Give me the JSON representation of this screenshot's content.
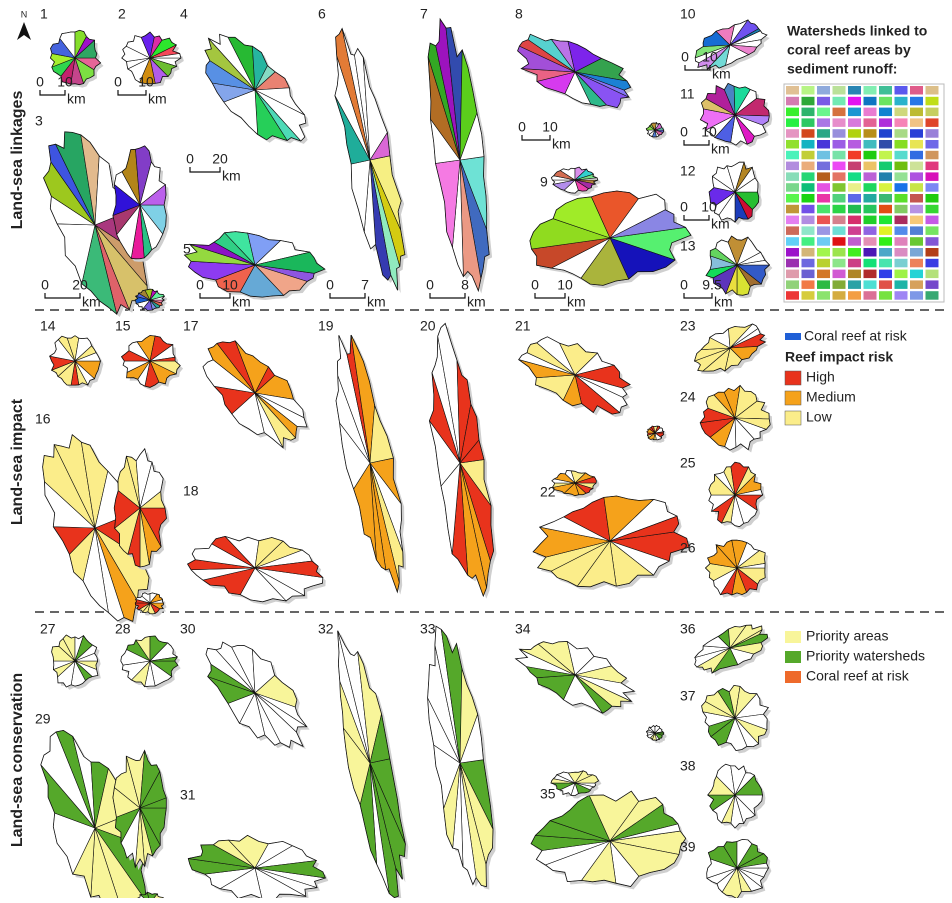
{
  "north": "N",
  "rows": [
    {
      "label": "Land-sea linkages"
    },
    {
      "label": "Land-sea impact"
    },
    {
      "label": "Land-sea conservation"
    }
  ],
  "panels": [
    1,
    2,
    3,
    4,
    5,
    6,
    7,
    8,
    9,
    10,
    11,
    12,
    13,
    14,
    15,
    16,
    17,
    18,
    19,
    20,
    21,
    22,
    23,
    24,
    25,
    26,
    27,
    28,
    29,
    30,
    31,
    32,
    33,
    34,
    35,
    36,
    37,
    38,
    39
  ],
  "scale_bars": [
    {
      "zero": 0,
      "length": 10,
      "unit": "km"
    },
    {
      "zero": 0,
      "length": 10,
      "unit": "km"
    },
    {
      "zero": 0,
      "length": 20,
      "unit": "km"
    },
    {
      "zero": 0,
      "length": 20,
      "unit": "km"
    },
    {
      "zero": 0,
      "length": 10,
      "unit": "km"
    },
    {
      "zero": 0,
      "length": 7,
      "unit": "km"
    },
    {
      "zero": 0,
      "length": 8,
      "unit": "km"
    },
    {
      "zero": 0,
      "length": 10,
      "unit": "km"
    },
    {
      "zero": 0,
      "length": 10,
      "unit": "km"
    },
    {
      "zero": 0,
      "length": 10,
      "unit": "km"
    },
    {
      "zero": 0,
      "length": 10,
      "unit": "km"
    },
    {
      "zero": 0,
      "length": 10,
      "unit": "km"
    },
    {
      "zero": 0,
      "length": 9.5,
      "unit": "km"
    }
  ],
  "legends": {
    "linkages": {
      "title_lines": [
        "Watersheds linked to",
        "coral reef areas by",
        "sediment runoff:"
      ]
    },
    "impact": {
      "reef": {
        "label": "Coral reef at risk",
        "color": "#1f5fd6"
      },
      "title": "Reef impact risk",
      "items": [
        {
          "label": "High",
          "color": "#e8331c"
        },
        {
          "label": "Medium",
          "color": "#f5a21b"
        },
        {
          "label": "Low",
          "color": "#fbed8a"
        }
      ]
    },
    "conservation": {
      "items": [
        {
          "label": "Priority areas",
          "color": "#f8f59a"
        },
        {
          "label": "Priority watersheds",
          "color": "#55a82a"
        },
        {
          "label": "Coral reef at risk",
          "color": "#ee6a2b"
        }
      ]
    }
  }
}
